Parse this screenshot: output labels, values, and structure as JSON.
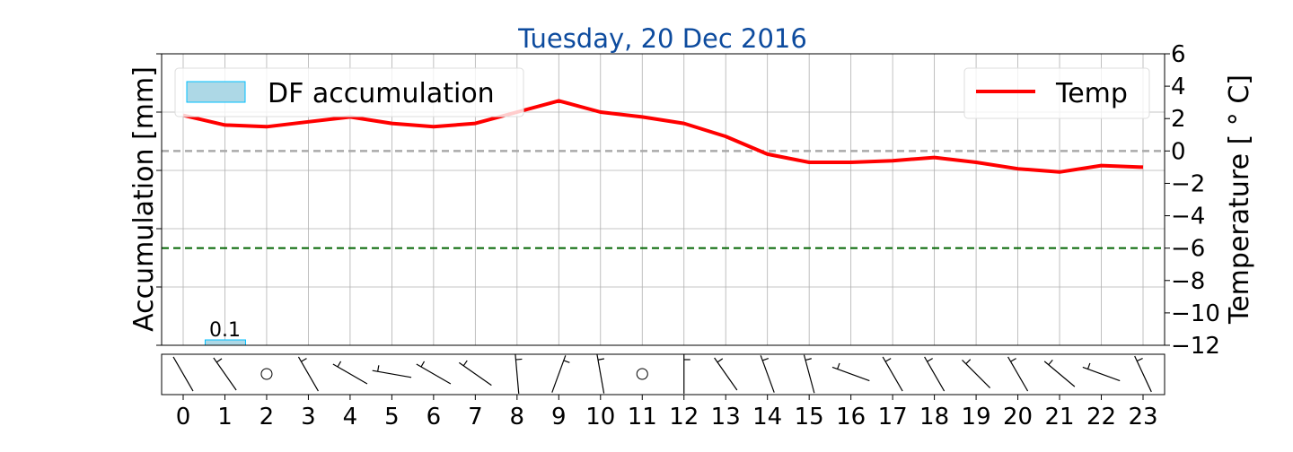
{
  "chart_data": {
    "type": "line",
    "title": "Tuesday, 20 Dec 2016",
    "x": [
      0,
      1,
      2,
      3,
      4,
      5,
      6,
      7,
      8,
      9,
      10,
      11,
      12,
      13,
      14,
      15,
      16,
      17,
      18,
      19,
      20,
      21,
      22,
      23
    ],
    "x_tick_labels": [
      "0",
      "1",
      "2",
      "3",
      "4",
      "5",
      "6",
      "7",
      "8",
      "9",
      "10",
      "11",
      "12",
      "13",
      "14",
      "15",
      "16",
      "17",
      "18",
      "19",
      "20",
      "21",
      "22",
      "23"
    ],
    "left_axis": {
      "label": "Accumulation [mm]",
      "ticks": [
        "",
        "",
        "",
        "",
        "",
        "",
        ""
      ]
    },
    "right_axis": {
      "label": "Temperature [$^\\circ$C]",
      "label_display": "Temperature [ ° C]",
      "ylim": [
        -12,
        6
      ],
      "ticks": [
        6,
        4,
        2,
        0,
        -2,
        -4,
        -6,
        -8,
        -10,
        -12
      ],
      "tick_labels": [
        "6",
        "4",
        "2",
        "0",
        "−2",
        "−4",
        "−6",
        "−8",
        "−10",
        "−12"
      ]
    },
    "series": [
      {
        "name": "Temp",
        "axis": "right",
        "color": "#ff0000",
        "values": [
          2.2,
          1.6,
          1.5,
          1.8,
          2.1,
          1.7,
          1.5,
          1.7,
          2.4,
          3.1,
          2.4,
          2.1,
          1.7,
          0.9,
          -0.2,
          -0.7,
          -0.7,
          -0.6,
          -0.4,
          -0.7,
          -1.1,
          -1.3,
          -0.9,
          -1.0
        ]
      },
      {
        "name": "DF accumulation",
        "type": "bar",
        "axis": "left",
        "color": "#add8e6",
        "edge_color": "#00bfff",
        "values": [
          0,
          0.1,
          0,
          0,
          0,
          0,
          0,
          0,
          0,
          0,
          0,
          0,
          0,
          0,
          0,
          0,
          0,
          0,
          0,
          0,
          0,
          0,
          0,
          0
        ],
        "data_labels": {
          "1": "0.1"
        }
      }
    ],
    "reference_lines": [
      {
        "axis": "right",
        "value": 0,
        "color": "#aaaaaa",
        "style": "dashed"
      },
      {
        "axis": "right",
        "value": -6,
        "color": "#006400",
        "style": "dashed"
      }
    ],
    "legend": [
      {
        "label": "DF accumulation",
        "placement": "top-left"
      },
      {
        "label": "Temp",
        "placement": "top-right"
      }
    ],
    "grid": true,
    "wind_barbs": {
      "hours": [
        0,
        1,
        2,
        3,
        4,
        5,
        6,
        7,
        8,
        9,
        10,
        11,
        12,
        13,
        14,
        15,
        16,
        17,
        18,
        19,
        20,
        21,
        22,
        23
      ],
      "direction_deg": [
        330,
        325,
        null,
        330,
        300,
        280,
        300,
        305,
        355,
        20,
        350,
        null,
        0,
        325,
        340,
        345,
        290,
        330,
        330,
        315,
        330,
        310,
        290,
        335
      ],
      "barbs": [
        0,
        0.5,
        0,
        0.5,
        0.5,
        0.5,
        0.5,
        0.5,
        0.5,
        0.5,
        0.5,
        0,
        0.5,
        0.5,
        0.5,
        0.5,
        0.5,
        0.5,
        0.5,
        0.5,
        0.5,
        0.5,
        0.5,
        0.5
      ],
      "calm": [
        false,
        false,
        true,
        false,
        false,
        false,
        false,
        false,
        false,
        false,
        false,
        true,
        false,
        false,
        false,
        false,
        false,
        false,
        false,
        false,
        false,
        false,
        false,
        false
      ]
    }
  }
}
